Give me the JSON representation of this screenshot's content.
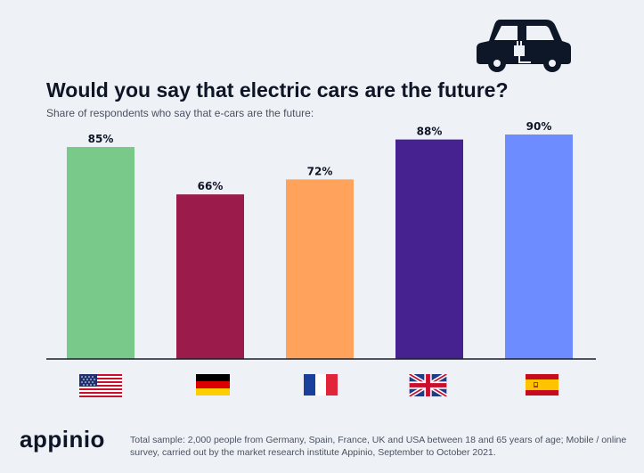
{
  "header": {
    "title": "Would you say that electric cars are the future?",
    "subtitle": "Share of respondents who say that e-cars are the future:"
  },
  "icons": {
    "car": "electric-car-icon"
  },
  "chart_data": {
    "type": "bar",
    "categories": [
      "USA",
      "Germany",
      "France",
      "UK",
      "Spain"
    ],
    "values": [
      85,
      66,
      72,
      88,
      90
    ],
    "value_labels": [
      "85%",
      "66%",
      "72%",
      "88%",
      "90%"
    ],
    "colors": [
      "#79c98a",
      "#9b1c4b",
      "#ffa35c",
      "#45228f",
      "#6c8cff"
    ],
    "ylim": [
      0,
      100
    ],
    "grid": false,
    "legend": "none",
    "category_display": "flags"
  },
  "footer": {
    "logo": "appinio",
    "note": "Total sample: 2,000 people from Germany, Spain, France, UK and USA between 18 and 65 years of age; Mobile / online survey, carried out by the market research institute Appinio, September to October 2021."
  }
}
